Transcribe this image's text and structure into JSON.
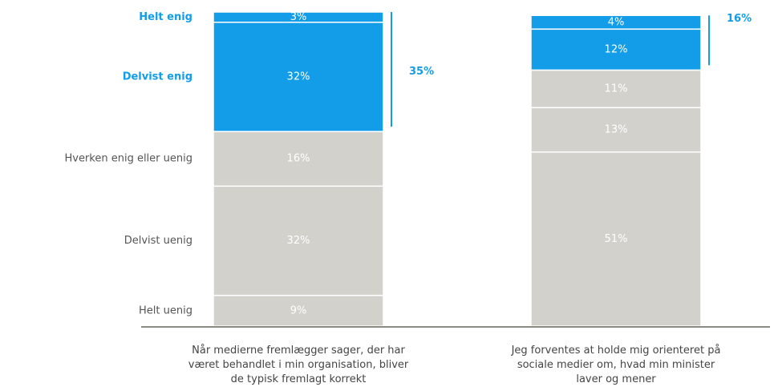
{
  "chart_data": {
    "type": "stacked_bar",
    "categories": [
      "Når medierne fremlægger sager, der har\nværet behandlet i min organisation, bliver\nde typisk fremlagt korrekt",
      "Jeg forventes at holde mig orienteret på\nsociale medier om, hvad min minister\nlaver og mener"
    ],
    "ylim": [
      0,
      92
    ],
    "series": [
      {
        "name": "Helt uenig",
        "color": "#d3d1cb",
        "label_color": "#555555",
        "values": [
          9,
          51
        ],
        "value_labels": [
          "9%",
          "51%"
        ]
      },
      {
        "name": "Delvist uenig",
        "color": "#d3d1cb",
        "label_color": "#555555",
        "values": [
          32,
          13
        ],
        "value_labels": [
          "32%",
          "13%"
        ]
      },
      {
        "name": "Hverken enig eller uenig",
        "color": "#d3d1cb",
        "label_color": "#555555",
        "values": [
          16,
          11
        ],
        "value_labels": [
          "16%",
          "11%"
        ]
      },
      {
        "name": "Delvist enig",
        "color": "#139de8",
        "label_color": "#139de8",
        "values": [
          32,
          12
        ],
        "value_labels": [
          "32%",
          "12%"
        ]
      },
      {
        "name": "Helt enig",
        "color": "#139de8",
        "label_color": "#139de8",
        "values": [
          3,
          4
        ],
        "value_labels": [
          "3%",
          "4%"
        ]
      }
    ],
    "agree_totals": [
      35,
      16
    ],
    "agree_total_labels": [
      "35%",
      "16%"
    ]
  }
}
